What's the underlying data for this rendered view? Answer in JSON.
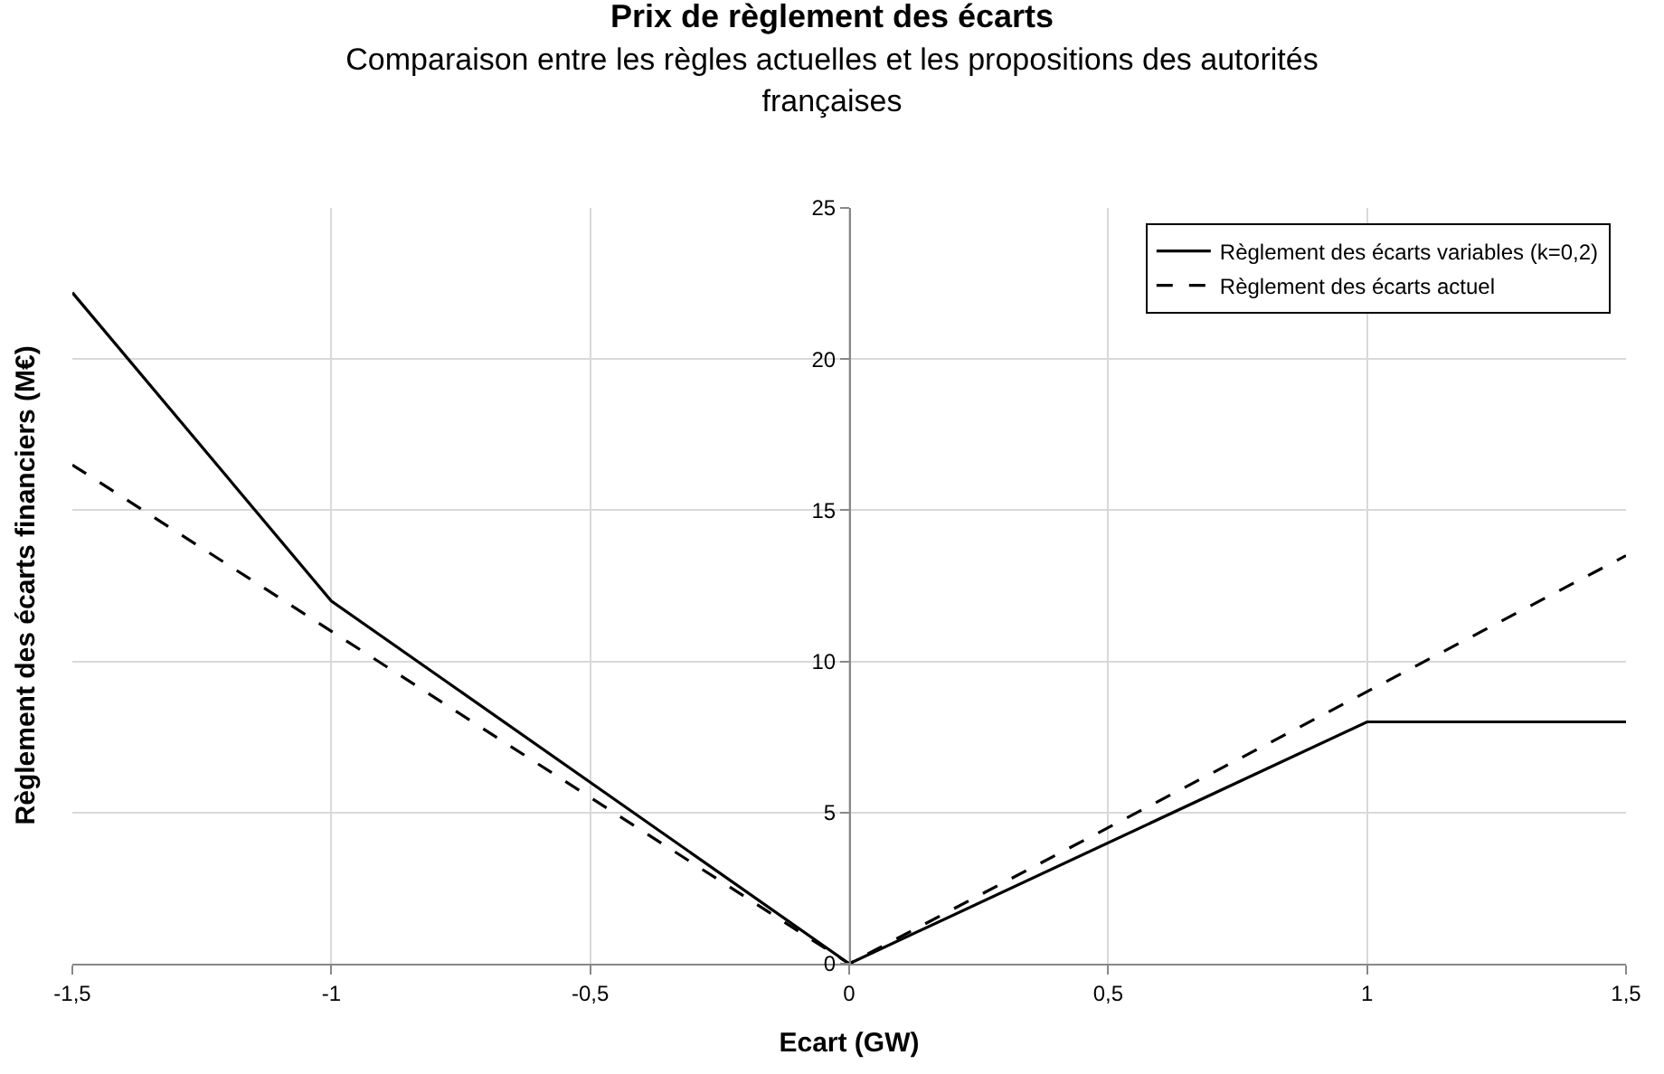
{
  "chart_data": {
    "type": "line",
    "title": "Prix de règlement des écarts",
    "subtitle": "Comparaison entre les règles actuelles et les propositions des autorités françaises",
    "xlabel": "Ecart (GW)",
    "ylabel": "Règlement des écarts financiers (M€)",
    "xlim": [
      -1.5,
      1.5
    ],
    "xticks": [
      {
        "value": -1.5,
        "label": "-1,5"
      },
      -1,
      {
        "value": -0.5,
        "label": "-0,5"
      },
      0,
      {
        "value": 0.5,
        "label": "0,5"
      },
      1,
      {
        "value": 1.5,
        "label": "1,5"
      }
    ],
    "ylim": [
      0,
      25
    ],
    "yticks": [
      0,
      5,
      10,
      15,
      20,
      25
    ],
    "grid": true,
    "legend": "top right",
    "marker": "none",
    "series": [
      {
        "name": "Règlement des écarts variables (k=0,2)",
        "color": "#000000",
        "line_style": "solid",
        "x": [
          -1.5,
          -1,
          0,
          1,
          1.5
        ],
        "values": [
          22.2,
          12,
          0,
          8,
          8
        ]
      },
      {
        "name": "Règlement des écarts actuel",
        "color": "#000000",
        "line_style": "dashed",
        "x": [
          -1.5,
          0,
          1.5
        ],
        "values": [
          16.5,
          0,
          13.5
        ]
      }
    ]
  }
}
